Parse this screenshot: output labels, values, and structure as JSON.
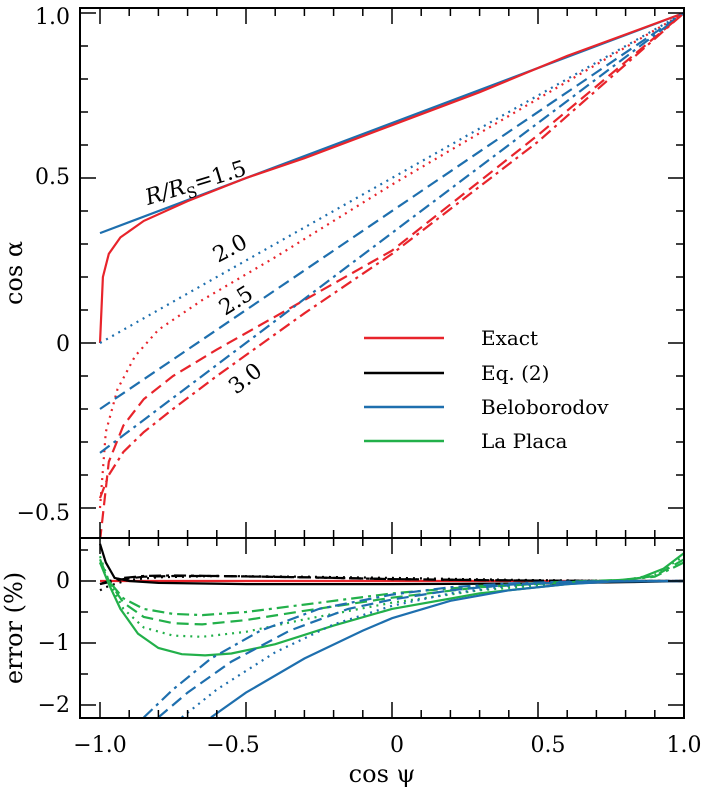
{
  "chart_data": [
    {
      "type": "line",
      "panel": "top",
      "xlabel": "cos ψ",
      "ylabel": "cos α",
      "xlim": [
        -1.0,
        1.0
      ],
      "ylim": [
        -0.5,
        1.0
      ],
      "x_ticks": [
        "−1.0",
        "−0.5",
        "0",
        "0.5",
        "1.0"
      ],
      "y_ticks": [
        "−0.5",
        "0",
        "0.5",
        "1.0"
      ],
      "legend": {
        "position": "lower-right",
        "entries": [
          {
            "label": "Exact",
            "color": "#e8242b"
          },
          {
            "label": "Eq. (2)",
            "color": "#000000"
          },
          {
            "label": "Beloborodov",
            "color": "#1e6fae"
          },
          {
            "label": "La Placa",
            "color": "#22b04a"
          }
        ]
      },
      "line_styles": {
        "1.5": "solid",
        "2.0": "dotted",
        "2.5": "dashed",
        "3.0": "dash-dot"
      },
      "annotations": [
        {
          "prefix": "R/R",
          "sub": "S",
          "suffix": "=1.5"
        },
        {
          "text": "2.0"
        },
        {
          "text": "2.5"
        },
        {
          "text": "3.0"
        }
      ],
      "series": [
        {
          "radius": 1.5,
          "model": "Beloborodov",
          "x": [
            -1.0,
            1.0
          ],
          "y": [
            0.333,
            1.0
          ]
        },
        {
          "radius": 1.5,
          "model": "Exact",
          "x": [
            -1.0,
            -0.99,
            -0.97,
            -0.93,
            -0.85,
            -0.7,
            -0.5,
            -0.3,
            0.0,
            0.3,
            0.6,
            1.0
          ],
          "y": [
            0.0,
            0.2,
            0.27,
            0.32,
            0.37,
            0.43,
            0.5,
            0.56,
            0.66,
            0.76,
            0.87,
            1.0
          ]
        },
        {
          "radius": 2.0,
          "model": "Beloborodov",
          "x": [
            -1.0,
            1.0
          ],
          "y": [
            0.0,
            1.0
          ]
        },
        {
          "radius": 2.0,
          "model": "Exact",
          "x": [
            -1.0,
            -0.98,
            -0.94,
            -0.88,
            -0.8,
            -0.65,
            -0.4,
            0.0,
            0.5,
            1.0
          ],
          "y": [
            -0.5,
            -0.27,
            -0.14,
            -0.04,
            0.04,
            0.13,
            0.26,
            0.48,
            0.74,
            1.0
          ]
        },
        {
          "radius": 2.5,
          "model": "Beloborodov",
          "x": [
            -1.0,
            1.0
          ],
          "y": [
            -0.2,
            1.0
          ]
        },
        {
          "radius": 2.5,
          "model": "Exact",
          "x": [
            -1.0,
            -0.97,
            -0.92,
            -0.85,
            -0.75,
            -0.6,
            -0.3,
            0.0,
            0.5,
            1.0
          ],
          "y": [
            -0.6,
            -0.36,
            -0.25,
            -0.17,
            -0.1,
            -0.02,
            0.13,
            0.28,
            0.63,
            1.0
          ]
        },
        {
          "radius": 3.0,
          "model": "Beloborodov",
          "x": [
            -1.0,
            1.0
          ],
          "y": [
            -0.333,
            1.0
          ]
        },
        {
          "radius": 3.0,
          "model": "Exact",
          "x": [
            -1.0,
            -0.97,
            -0.92,
            -0.85,
            -0.75,
            -0.6,
            -0.3,
            0.0,
            0.5,
            1.0
          ],
          "y": [
            -0.47,
            -0.4,
            -0.33,
            -0.27,
            -0.2,
            -0.1,
            0.09,
            0.27,
            0.61,
            1.0
          ]
        }
      ]
    },
    {
      "type": "line",
      "panel": "bottom",
      "xlabel": "cos ψ",
      "ylabel": "error (%)",
      "xlim": [
        -1.0,
        1.0
      ],
      "ylim": [
        -2.1,
        0.6
      ],
      "y_ticks": [
        "−2",
        "−1",
        "0"
      ],
      "series": [
        {
          "model": "Exact",
          "x": [
            -1.0,
            1.0
          ],
          "y": [
            0.0,
            0.0
          ]
        },
        {
          "radius": 1.5,
          "model": "Eq. (2)",
          "x": [
            -1.0,
            -0.98,
            -0.95,
            -0.9,
            -0.8,
            -0.5,
            0.0,
            0.5,
            0.8,
            1.0
          ],
          "y": [
            0.6,
            0.3,
            0.05,
            0.0,
            -0.03,
            -0.05,
            -0.05,
            -0.04,
            -0.02,
            0.0
          ]
        },
        {
          "radius": 2.0,
          "model": "Eq. (2)",
          "x": [
            -1.0,
            -0.98,
            -0.95,
            -0.9,
            -0.8,
            -0.6,
            -0.3,
            0.0,
            0.4,
            0.8,
            1.0
          ],
          "y": [
            -0.15,
            -0.1,
            -0.05,
            0.02,
            0.06,
            0.08,
            0.07,
            0.05,
            0.02,
            0.0,
            0.0
          ]
        },
        {
          "radius": 2.5,
          "model": "Eq. (2)",
          "x": [
            -1.0,
            -0.97,
            -0.92,
            -0.85,
            -0.75,
            -0.6,
            -0.3,
            0.0,
            0.4,
            0.8,
            1.0
          ],
          "y": [
            -0.05,
            -0.02,
            0.03,
            0.07,
            0.08,
            0.08,
            0.06,
            0.03,
            0.01,
            0.0,
            0.0
          ]
        },
        {
          "radius": 3.0,
          "model": "Eq. (2)",
          "x": [
            -1.0,
            -0.97,
            -0.92,
            -0.85,
            -0.75,
            -0.6,
            -0.3,
            0.0,
            0.4,
            0.8,
            1.0
          ],
          "y": [
            -0.05,
            0.0,
            0.05,
            0.08,
            0.09,
            0.08,
            0.06,
            0.03,
            0.01,
            0.0,
            0.0
          ]
        },
        {
          "radius": 1.5,
          "model": "La Placa",
          "x": [
            -1.0,
            -0.97,
            -0.93,
            -0.87,
            -0.8,
            -0.72,
            -0.64,
            -0.55,
            -0.4,
            -0.2,
            0.0,
            0.3,
            0.6,
            0.75,
            0.85,
            0.93,
            1.0
          ],
          "y": [
            0.3,
            -0.05,
            -0.45,
            -0.85,
            -1.08,
            -1.18,
            -1.2,
            -1.17,
            -1.02,
            -0.72,
            -0.45,
            -0.2,
            -0.05,
            0.0,
            0.05,
            0.2,
            0.45
          ]
        },
        {
          "radius": 2.0,
          "model": "La Placa",
          "x": [
            -1.0,
            -0.97,
            -0.92,
            -0.85,
            -0.75,
            -0.65,
            -0.5,
            -0.3,
            0.0,
            0.3,
            0.6,
            0.8,
            0.9,
            1.0
          ],
          "y": [
            0.4,
            0.0,
            -0.45,
            -0.75,
            -0.88,
            -0.9,
            -0.82,
            -0.62,
            -0.35,
            -0.15,
            -0.03,
            0.02,
            0.1,
            0.4
          ]
        },
        {
          "radius": 2.5,
          "model": "La Placa",
          "x": [
            -1.0,
            -0.97,
            -0.92,
            -0.85,
            -0.75,
            -0.65,
            -0.5,
            -0.3,
            0.0,
            0.3,
            0.6,
            0.8,
            0.9,
            1.0
          ],
          "y": [
            0.35,
            0.0,
            -0.35,
            -0.58,
            -0.68,
            -0.7,
            -0.63,
            -0.48,
            -0.27,
            -0.1,
            -0.02,
            0.02,
            0.08,
            0.35
          ]
        },
        {
          "radius": 3.0,
          "model": "La Placa",
          "x": [
            -1.0,
            -0.97,
            -0.92,
            -0.85,
            -0.75,
            -0.65,
            -0.5,
            -0.3,
            0.0,
            0.3,
            0.6,
            0.8,
            0.9,
            1.0
          ],
          "y": [
            0.3,
            0.0,
            -0.28,
            -0.45,
            -0.53,
            -0.55,
            -0.5,
            -0.38,
            -0.2,
            -0.08,
            -0.01,
            0.02,
            0.07,
            0.3
          ]
        },
        {
          "radius": 1.5,
          "model": "Beloborodov",
          "x": [
            -0.62,
            -0.5,
            -0.3,
            -0.1,
            0.0,
            0.2,
            0.4,
            0.6,
            0.75,
            1.0
          ],
          "y": [
            -2.2,
            -1.8,
            -1.25,
            -0.8,
            -0.6,
            -0.32,
            -0.15,
            -0.05,
            -0.01,
            0.0
          ]
        },
        {
          "radius": 2.0,
          "model": "Beloborodov",
          "x": [
            -0.72,
            -0.6,
            -0.4,
            -0.2,
            0.0,
            0.2,
            0.4,
            0.6,
            0.8,
            1.0
          ],
          "y": [
            -2.2,
            -1.75,
            -1.15,
            -0.7,
            -0.4,
            -0.2,
            -0.08,
            -0.02,
            0.0,
            0.0
          ]
        },
        {
          "radius": 2.5,
          "model": "Beloborodov",
          "x": [
            -0.8,
            -0.7,
            -0.55,
            -0.35,
            -0.15,
            0.0,
            0.2,
            0.4,
            0.6,
            0.8,
            1.0
          ],
          "y": [
            -2.2,
            -1.8,
            -1.3,
            -0.8,
            -0.45,
            -0.3,
            -0.15,
            -0.06,
            -0.02,
            0.0,
            0.0
          ]
        },
        {
          "radius": 3.0,
          "model": "Beloborodov",
          "x": [
            -0.85,
            -0.75,
            -0.62,
            -0.45,
            -0.25,
            0.0,
            0.2,
            0.4,
            0.6,
            0.8,
            1.0
          ],
          "y": [
            -2.2,
            -1.75,
            -1.25,
            -0.8,
            -0.45,
            -0.22,
            -0.1,
            -0.04,
            -0.01,
            0.0,
            0.0
          ]
        }
      ]
    }
  ]
}
